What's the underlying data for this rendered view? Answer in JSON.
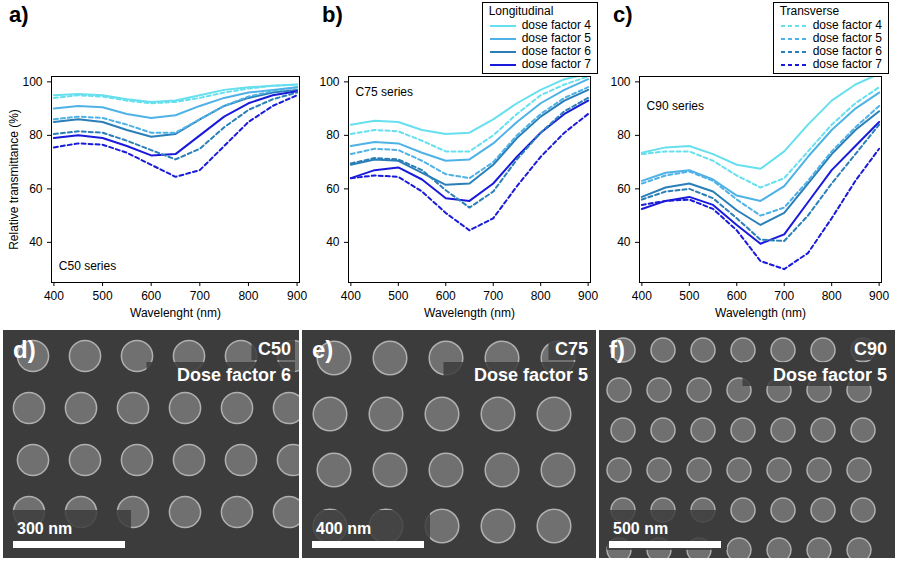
{
  "chart_data": [
    {
      "type": "line",
      "label": "a)",
      "x_label": "Wavelenght (nm)",
      "y_label": "Relative transmittance (%)",
      "x": [
        400,
        450,
        500,
        550,
        600,
        650,
        700,
        750,
        800,
        850,
        900
      ],
      "xlim": [
        395,
        905
      ],
      "xticks": [
        400,
        500,
        600,
        700,
        800,
        900
      ],
      "ylim": [
        25,
        102
      ],
      "yticks": [
        40,
        60,
        80,
        100
      ],
      "annotations": [
        {
          "text": "C50 series",
          "x": 410,
          "y": 31
        }
      ],
      "groups": [
        {
          "name": "Longitudinal",
          "line_style": "solid",
          "series": [
            {
              "name": "dose factor 4",
              "color": "#66e0ee",
              "values": [
                95,
                95.5,
                95,
                93.5,
                92.5,
                93,
                95,
                97,
                98,
                98.5,
                99
              ]
            },
            {
              "name": "dose factor 5",
              "color": "#4fb2e6",
              "values": [
                90,
                91,
                90.5,
                88,
                86.5,
                87.5,
                91,
                94,
                96,
                97,
                98
              ]
            },
            {
              "name": "dose factor 6",
              "color": "#2a7fb8",
              "values": [
                85,
                86,
                85,
                82,
                79.5,
                80.5,
                86,
                91,
                94,
                96,
                97
              ]
            },
            {
              "name": "dose factor 7",
              "color": "#1a1adb",
              "values": [
                79,
                80,
                79,
                76,
                72.5,
                73,
                80,
                87,
                92,
                95,
                96.5
              ]
            }
          ]
        },
        {
          "name": "Transverse",
          "line_style": "dashed",
          "series": [
            {
              "name": "dose factor 4",
              "color": "#66e0ee",
              "values": [
                94,
                95,
                94.5,
                93,
                92,
                92.5,
                94,
                96,
                97.5,
                98.5,
                99
              ]
            },
            {
              "name": "dose factor 5",
              "color": "#4fb2e6",
              "values": [
                86,
                87,
                86.5,
                84,
                81,
                81,
                86,
                91,
                94.5,
                96.5,
                98
              ]
            },
            {
              "name": "dose factor 6",
              "color": "#2a7fb8",
              "values": [
                80.5,
                81.5,
                81,
                78,
                74.5,
                71,
                75,
                83,
                89.5,
                93.5,
                96
              ]
            },
            {
              "name": "dose factor 7",
              "color": "#1a1adb",
              "values": [
                75.5,
                77,
                76.5,
                73.5,
                69,
                64.5,
                67,
                76,
                85,
                91,
                95
              ]
            }
          ]
        }
      ]
    },
    {
      "type": "line",
      "label": "b)",
      "x_label": "Wavelength (nm)",
      "x": [
        400,
        450,
        500,
        550,
        600,
        650,
        700,
        750,
        800,
        850,
        900
      ],
      "xlim": [
        395,
        905
      ],
      "xticks": [
        400,
        500,
        600,
        700,
        800,
        900
      ],
      "ylim": [
        25,
        102
      ],
      "yticks": [
        40,
        60,
        80,
        100
      ],
      "annotations": [
        {
          "text": "C75 series",
          "x": 410,
          "y": 96
        }
      ],
      "legend": "top-right",
      "legend_group": "Longitudinal",
      "groups": [
        {
          "name": "Longitudinal",
          "line_style": "solid",
          "series": [
            {
              "name": "dose factor 4",
              "color": "#66e0ee",
              "values": [
                84,
                85.5,
                85,
                82,
                80.5,
                81,
                86,
                92,
                97,
                101,
                103
              ]
            },
            {
              "name": "dose factor 5",
              "color": "#4fb2e6",
              "values": [
                76,
                77.5,
                77,
                73.5,
                70.5,
                71,
                77,
                85,
                92,
                97,
                101
              ]
            },
            {
              "name": "dose factor 6",
              "color": "#2a7fb8",
              "values": [
                69,
                71,
                70.5,
                66,
                61.5,
                62,
                69,
                79,
                87,
                93,
                97
              ]
            },
            {
              "name": "dose factor 7",
              "color": "#1a1adb",
              "values": [
                64,
                67,
                68,
                63.5,
                56.5,
                55.5,
                62,
                72,
                81,
                88,
                93
              ]
            }
          ]
        },
        {
          "name": "Transverse",
          "line_style": "dashed",
          "series": [
            {
              "name": "dose factor 4",
              "color": "#66e0ee",
              "values": [
                80.5,
                82,
                81.5,
                78,
                74,
                74,
                80,
                88,
                95,
                99,
                102
              ]
            },
            {
              "name": "dose factor 5",
              "color": "#4fb2e6",
              "values": [
                73,
                75,
                74.5,
                70.5,
                65.5,
                64,
                70,
                80,
                88,
                94,
                98
              ]
            },
            {
              "name": "dose factor 6",
              "color": "#2a7fb8",
              "values": [
                69.5,
                71.5,
                71,
                67,
                59.5,
                53,
                59,
                71,
                81,
                89,
                94
              ]
            },
            {
              "name": "dose factor 7",
              "color": "#1a1adb",
              "values": [
                64,
                65,
                64.5,
                59,
                51,
                44.5,
                49,
                61,
                72,
                81,
                88
              ]
            }
          ]
        }
      ]
    },
    {
      "type": "line",
      "label": "c)",
      "x_label": "Wavelength (nm)",
      "x": [
        400,
        450,
        500,
        550,
        600,
        650,
        700,
        750,
        800,
        850,
        900
      ],
      "xlim": [
        395,
        905
      ],
      "xticks": [
        400,
        500,
        600,
        700,
        800,
        900
      ],
      "ylim": [
        25,
        102
      ],
      "yticks": [
        40,
        60,
        80,
        100
      ],
      "annotations": [
        {
          "text": "C90 series",
          "x": 410,
          "y": 91
        }
      ],
      "legend": "top-right",
      "legend_group": "Transverse",
      "groups": [
        {
          "name": "Longitudinal",
          "line_style": "solid",
          "series": [
            {
              "name": "dose factor 4",
              "color": "#66e0ee",
              "values": [
                73.5,
                75.5,
                76,
                73,
                69,
                67.5,
                74,
                84,
                93,
                99,
                103
              ]
            },
            {
              "name": "dose factor 5",
              "color": "#4fb2e6",
              "values": [
                63,
                66,
                67,
                63.5,
                57.5,
                55.5,
                61,
                72,
                82,
                90,
                96
              ]
            },
            {
              "name": "dose factor 6",
              "color": "#2a7fb8",
              "values": [
                57,
                60.5,
                62,
                59,
                52,
                46.5,
                51,
                62,
                73,
                82,
                89
              ]
            },
            {
              "name": "dose factor 7",
              "color": "#1a1adb",
              "values": [
                52.5,
                55.5,
                57,
                54,
                46.5,
                39.5,
                43,
                55,
                67,
                76,
                85
              ]
            }
          ]
        },
        {
          "name": "Transverse",
          "line_style": "dashed",
          "series": [
            {
              "name": "dose factor 4",
              "color": "#66e0ee",
              "values": [
                73,
                74,
                74,
                70.5,
                65,
                60.5,
                64,
                74,
                84,
                92,
                98
              ]
            },
            {
              "name": "dose factor 5",
              "color": "#4fb2e6",
              "values": [
                62,
                65,
                66.5,
                63,
                56,
                50,
                53,
                63,
                74,
                83,
                91
              ]
            },
            {
              "name": "dose factor 6",
              "color": "#2a7fb8",
              "values": [
                56,
                59,
                60,
                56.5,
                49,
                41,
                40.5,
                50,
                62,
                73,
                84
              ]
            },
            {
              "name": "dose factor 7",
              "color": "#1a1adb",
              "values": [
                54,
                55.5,
                56,
                52.5,
                44.5,
                33,
                30,
                36,
                49,
                63,
                75
              ]
            }
          ]
        }
      ]
    }
  ],
  "images": [
    {
      "label": "d)",
      "lines": [
        "C50",
        "Dose factor 6"
      ],
      "scale_bar": "300 nm"
    },
    {
      "label": "e)",
      "lines": [
        "C75",
        "Dose factor 5"
      ],
      "scale_bar": "400 nm"
    },
    {
      "label": "f)",
      "lines": [
        "C90",
        "Dose factor 5"
      ],
      "scale_bar": "500 nm"
    }
  ]
}
